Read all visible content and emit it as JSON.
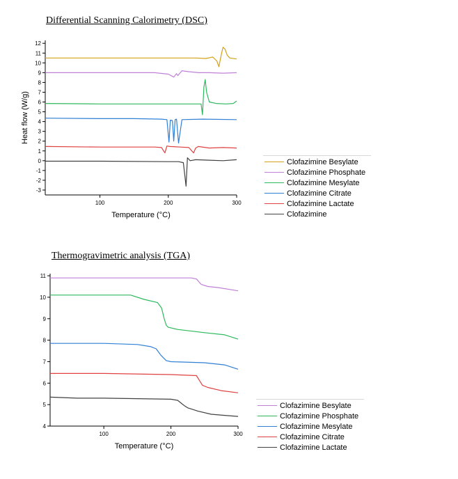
{
  "dsc": {
    "title": "Differential Scanning Calorimetry (DSC)",
    "chart_data": {
      "type": "line",
      "title": "Differential Scanning Calorimetry (DSC)",
      "xlabel": "Temperature (°C)",
      "ylabel": "Heat flow (W/g)",
      "xlim": [
        20,
        300
      ],
      "ylim": [
        -3.5,
        12.3
      ],
      "xticks": [
        100,
        200,
        300
      ],
      "yticks": [
        -3,
        -2,
        -1,
        0,
        1,
        2,
        3,
        4,
        5,
        6,
        7,
        8,
        9,
        10,
        11,
        12
      ],
      "grid": false,
      "legend": "right",
      "series": [
        {
          "name": "Clofazimine Besylate",
          "color": "#d4a017",
          "x": [
            20,
            100,
            200,
            240,
            255,
            265,
            271,
            274,
            276,
            278,
            280,
            283,
            286,
            290,
            300
          ],
          "y": [
            10.5,
            10.5,
            10.5,
            10.5,
            10.45,
            10.6,
            10.2,
            9.6,
            10.3,
            11.0,
            11.6,
            11.4,
            10.8,
            10.5,
            10.4
          ]
        },
        {
          "name": "Clofazimine Phosphate",
          "color": "#c080d8",
          "x": [
            20,
            100,
            180,
            200,
            208,
            212,
            214,
            220,
            230,
            245,
            260,
            280,
            300
          ],
          "y": [
            9.0,
            9.0,
            9.0,
            8.85,
            8.55,
            8.9,
            8.7,
            9.2,
            9.1,
            9.0,
            9.0,
            8.95,
            9.0
          ]
        },
        {
          "name": "Clofazimine Mesylate",
          "color": "#2eb85c",
          "x": [
            20,
            100,
            200,
            240,
            248,
            250,
            252,
            254,
            256,
            260,
            270,
            285,
            295,
            300
          ],
          "y": [
            5.85,
            5.8,
            5.8,
            5.8,
            5.8,
            4.7,
            7.5,
            8.3,
            7.0,
            6.0,
            5.85,
            5.8,
            5.85,
            6.1
          ]
        },
        {
          "name": "Clofazimine Citrate",
          "color": "#2f7fd6",
          "x": [
            20,
            100,
            150,
            190,
            198,
            201,
            203,
            206,
            208,
            210,
            212,
            215,
            220,
            250,
            300
          ],
          "y": [
            4.35,
            4.3,
            4.3,
            4.25,
            4.2,
            1.9,
            4.15,
            4.1,
            2.0,
            4.2,
            4.25,
            1.8,
            4.2,
            4.25,
            4.2
          ]
        },
        {
          "name": "Clofazimine Lactate",
          "color": "#e04040",
          "x": [
            20,
            100,
            180,
            190,
            195,
            198,
            202,
            230,
            237,
            240,
            244,
            260,
            280,
            300
          ],
          "y": [
            1.45,
            1.4,
            1.4,
            1.35,
            0.8,
            1.5,
            1.45,
            1.35,
            0.8,
            1.3,
            1.45,
            1.3,
            1.35,
            1.3
          ]
        },
        {
          "name": "Clofazimine",
          "color": "#404040",
          "x": [
            20,
            100,
            200,
            215,
            222,
            226,
            228,
            232,
            240,
            260,
            280,
            300
          ],
          "y": [
            -0.05,
            -0.05,
            -0.1,
            -0.1,
            -0.2,
            -2.6,
            0.3,
            0.0,
            0.1,
            0.05,
            0.0,
            0.1
          ]
        }
      ]
    }
  },
  "tga": {
    "title": "Thermogravimetric analysis (TGA)",
    "chart_data": {
      "type": "line",
      "title": "Thermogravimetric analysis (TGA)",
      "xlabel": "Temperature (°C)",
      "ylabel": "",
      "xlim": [
        20,
        300
      ],
      "ylim": [
        4,
        11.1
      ],
      "xticks": [
        100,
        200,
        300
      ],
      "yticks": [
        4,
        5,
        6,
        7,
        8,
        9,
        10,
        11
      ],
      "grid": false,
      "legend": "right",
      "series": [
        {
          "name": "Clofazimine Besylate",
          "color": "#c080d8",
          "x": [
            20,
            100,
            200,
            230,
            238,
            245,
            255,
            270,
            300
          ],
          "y": [
            10.9,
            10.9,
            10.9,
            10.9,
            10.85,
            10.6,
            10.5,
            10.45,
            10.3
          ]
        },
        {
          "name": "Clofazimine Phosphate",
          "color": "#2eb85c",
          "x": [
            20,
            100,
            140,
            160,
            180,
            186,
            190,
            193,
            196,
            210,
            250,
            280,
            300
          ],
          "y": [
            10.1,
            10.1,
            10.1,
            9.9,
            9.75,
            9.5,
            9.0,
            8.7,
            8.6,
            8.5,
            8.35,
            8.25,
            8.05
          ]
        },
        {
          "name": "Clofazimine Mesylate",
          "color": "#2f7fd6",
          "x": [
            20,
            100,
            150,
            170,
            178,
            185,
            193,
            200,
            250,
            280,
            300
          ],
          "y": [
            7.85,
            7.85,
            7.8,
            7.7,
            7.6,
            7.3,
            7.05,
            7.0,
            6.95,
            6.85,
            6.65
          ]
        },
        {
          "name": "Clofazimine Citrate",
          "color": "#e04040",
          "x": [
            20,
            100,
            200,
            238,
            243,
            247,
            255,
            275,
            300
          ],
          "y": [
            6.45,
            6.45,
            6.4,
            6.35,
            6.1,
            5.9,
            5.8,
            5.65,
            5.55
          ]
        },
        {
          "name": "Clofazimine Lactate",
          "color": "#404040",
          "x": [
            20,
            60,
            100,
            200,
            210,
            216,
            220,
            225,
            230,
            240,
            260,
            280,
            300
          ],
          "y": [
            5.35,
            5.3,
            5.3,
            5.25,
            5.2,
            5.05,
            4.95,
            4.85,
            4.8,
            4.7,
            4.55,
            4.5,
            4.45
          ]
        }
      ]
    }
  }
}
